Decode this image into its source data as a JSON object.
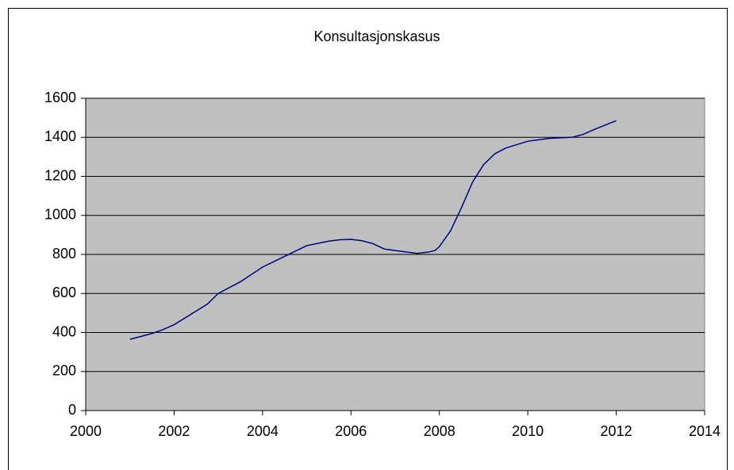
{
  "chart_data": {
    "type": "line",
    "title": "Konsultasjonskasus",
    "x": [
      2001.0,
      2001.5,
      2001.75,
      2002.0,
      2002.5,
      2002.75,
      2003.0,
      2003.5,
      2004.0,
      2004.5,
      2005.0,
      2005.5,
      2005.75,
      2006.0,
      2006.25,
      2006.5,
      2006.75,
      2007.0,
      2007.5,
      2007.75,
      2007.9,
      2008.0,
      2008.25,
      2008.5,
      2008.75,
      2009.0,
      2009.25,
      2009.5,
      2010.0,
      2010.5,
      2011.0,
      2011.25,
      2011.5,
      2012.0
    ],
    "series": [
      {
        "color": "#000080",
        "values": [
          365,
          395,
          415,
          440,
          510,
          545,
          600,
          660,
          735,
          790,
          845,
          868,
          875,
          877,
          870,
          855,
          828,
          820,
          805,
          812,
          820,
          840,
          920,
          1040,
          1170,
          1260,
          1315,
          1345,
          1380,
          1395,
          1400,
          1415,
          1440,
          1485
        ]
      }
    ],
    "xlim": [
      2000,
      2014
    ],
    "xticks": [
      2000,
      2002,
      2004,
      2006,
      2008,
      2010,
      2012,
      2014
    ],
    "ylim": [
      0,
      1600
    ],
    "yticks": [
      0,
      200,
      400,
      600,
      800,
      1000,
      1200,
      1400,
      1600
    ],
    "grid": true,
    "plot_background": "#c0c0c0"
  }
}
